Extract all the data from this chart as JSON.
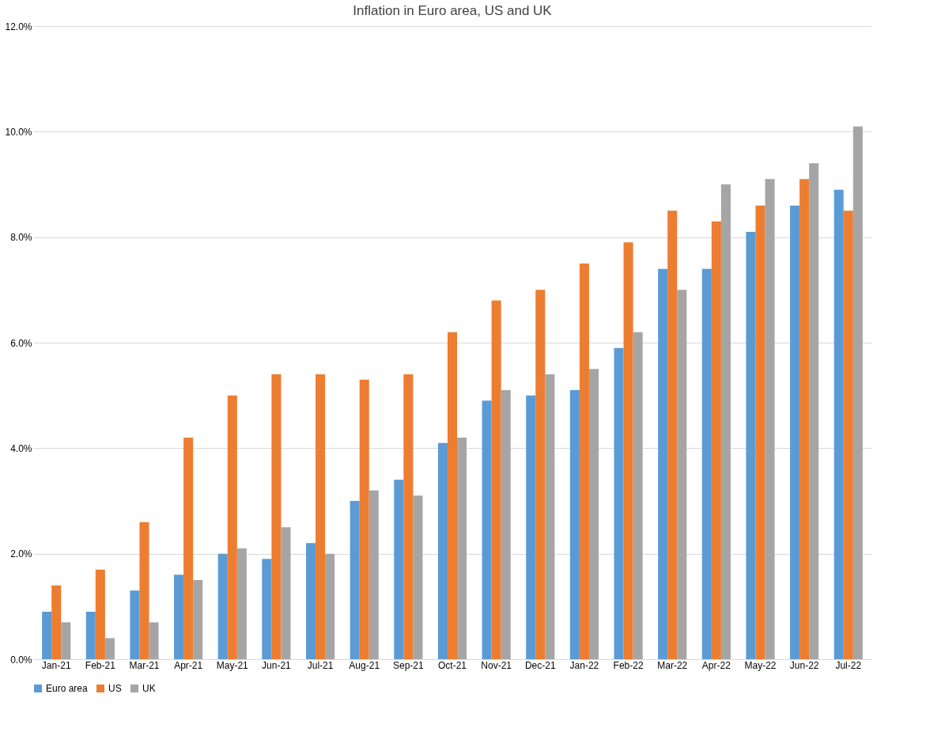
{
  "chart_data": {
    "type": "bar",
    "title": "Inflation in Euro area, US and UK",
    "categories": [
      "Jan-21",
      "Feb-21",
      "Mar-21",
      "Apr-21",
      "May-21",
      "Jun-21",
      "Jul-21",
      "Aug-21",
      "Sep-21",
      "Oct-21",
      "Nov-21",
      "Dec-21",
      "Jan-22",
      "Feb-22",
      "Mar-22",
      "Apr-22",
      "May-22",
      "Jun-22",
      "Jul-22"
    ],
    "series": [
      {
        "name": "Euro area",
        "color": "#5b9bd5",
        "values": [
          0.9,
          0.9,
          1.3,
          1.6,
          2.0,
          1.9,
          2.2,
          3.0,
          3.4,
          4.1,
          4.9,
          5.0,
          5.1,
          5.9,
          7.4,
          7.4,
          8.1,
          8.6,
          8.9
        ]
      },
      {
        "name": "US",
        "color": "#ed7d31",
        "values": [
          1.4,
          1.7,
          2.6,
          4.2,
          5.0,
          5.4,
          5.4,
          5.3,
          5.4,
          6.2,
          6.8,
          7.0,
          7.5,
          7.9,
          8.5,
          8.3,
          8.6,
          9.1,
          8.5
        ]
      },
      {
        "name": "UK",
        "color": "#a5a5a5",
        "values": [
          0.7,
          0.4,
          0.7,
          1.5,
          2.1,
          2.5,
          2.0,
          3.2,
          3.1,
          4.2,
          5.1,
          5.4,
          5.5,
          6.2,
          7.0,
          9.0,
          9.1,
          9.4,
          10.1
        ]
      }
    ],
    "ylim": [
      0,
      12
    ],
    "yticks": [
      {
        "value": 0,
        "label": "0.0%"
      },
      {
        "value": 2,
        "label": "2.0%"
      },
      {
        "value": 4,
        "label": "4.0%"
      },
      {
        "value": 6,
        "label": "6.0%"
      },
      {
        "value": 8,
        "label": "8.0%"
      },
      {
        "value": 10,
        "label": "10.0%"
      },
      {
        "value": 12,
        "label": "12.0%"
      }
    ],
    "grid": "y",
    "legend": "bottom"
  }
}
